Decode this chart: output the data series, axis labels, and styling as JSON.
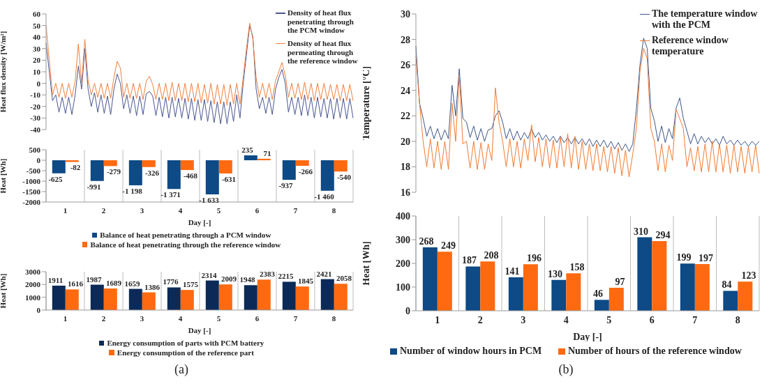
{
  "chart_data": [
    {
      "type": "line",
      "ylabel": "Heat flux density  [W/m²]",
      "categories": [
        null,
        null,
        null,
        null,
        null,
        null,
        null,
        null,
        null,
        null,
        null,
        null,
        null,
        null,
        null,
        null,
        null,
        null,
        null,
        null,
        null,
        null,
        null,
        null,
        null,
        null,
        null,
        null,
        null,
        null,
        null,
        null,
        null,
        null,
        null,
        null,
        null,
        null,
        null,
        null,
        null,
        null,
        null,
        null,
        null,
        null,
        null,
        null,
        null,
        null,
        null,
        null,
        null,
        null,
        null,
        null,
        null,
        null,
        null,
        null,
        null,
        null,
        null,
        null,
        null,
        null,
        null,
        null,
        null,
        null,
        null,
        null,
        null,
        null,
        null,
        null,
        null,
        null,
        null,
        null,
        null,
        null,
        null,
        null,
        null,
        null,
        null,
        null,
        null,
        null,
        null,
        null,
        null,
        null,
        null,
        null
      ],
      "ylim": [
        -40,
        60
      ],
      "yticks": [
        -40,
        -30,
        -20,
        -10,
        0,
        10,
        20,
        30,
        40,
        50,
        60
      ],
      "tick_labels": "y",
      "legend": "top right",
      "series": [
        {
          "name": "Density of heat flux penetrating through the PCM window",
          "color": "#4a5590",
          "values": [
            35,
            10,
            -15,
            -10,
            -25,
            -12,
            -26,
            -12,
            -27,
            -10,
            15,
            -5,
            30,
            -5,
            -20,
            -8,
            -25,
            -10,
            -26,
            -11,
            -27,
            -5,
            8,
            0,
            -22,
            -10,
            -26,
            -11,
            -28,
            -11,
            -27,
            -9,
            -7,
            -11,
            -28,
            -12,
            -29,
            -12,
            -30,
            -12,
            -29,
            -13,
            -30,
            -13,
            -31,
            -13,
            -32,
            -14,
            -32,
            -14,
            -33,
            -15,
            -34,
            -16,
            -35,
            -16,
            -35,
            -16,
            -33,
            -10,
            -30,
            0,
            25,
            50,
            40,
            -5,
            -22,
            -12,
            -26,
            -12,
            -27,
            -5,
            5,
            12,
            0,
            -25,
            -12,
            -27,
            -12,
            -28,
            -10,
            -28,
            -12,
            -30,
            -12,
            -29,
            -13,
            -30,
            -13,
            -31,
            -13,
            -30,
            -13,
            -31,
            -13,
            -30
          ]
        },
        {
          "name": "Density of heat flux permeating through the reference window",
          "color": "#f07f3c",
          "values": [
            50,
            20,
            -10,
            0,
            -12,
            0,
            -13,
            0,
            -12,
            2,
            34,
            0,
            38,
            3,
            -10,
            0,
            -12,
            0,
            -13,
            0,
            -13,
            5,
            19,
            13,
            -12,
            0,
            -13,
            0,
            -13,
            0,
            -14,
            2,
            6,
            -1,
            -14,
            0,
            -14,
            0,
            -15,
            1,
            -15,
            0,
            -15,
            0,
            -16,
            0,
            -16,
            0,
            -17,
            -1,
            -17,
            0,
            -18,
            -1,
            -18,
            -1,
            -19,
            -1,
            -18,
            0,
            -18,
            5,
            30,
            52,
            38,
            5,
            -12,
            0,
            -13,
            0,
            -14,
            2,
            10,
            18,
            7,
            -12,
            0,
            -13,
            0,
            -14,
            1,
            -14,
            0,
            -15,
            0,
            -14,
            0,
            -14,
            -1,
            -14,
            -1,
            -15,
            -1,
            -15,
            -1,
            -15
          ]
        }
      ]
    },
    {
      "type": "bar",
      "ylabel": "Heat  [Wh]",
      "xlabel": "Day [-]",
      "categories": [
        "1",
        "2",
        "3",
        "4",
        "5",
        "6",
        "7",
        "8"
      ],
      "ylim": [
        -2000,
        500
      ],
      "yticks": [
        -2000,
        -1500,
        -1000,
        -500,
        0,
        500
      ],
      "grid": "x",
      "legend": "bottom",
      "series": [
        {
          "name": "Balance of heat penetrating through a PCM window",
          "color": "#0d4a86",
          "values": [
            -625,
            -991,
            -1198,
            -1371,
            -1633,
            235,
            -937,
            -1460
          ],
          "value_labels": [
            "-625",
            "-991",
            "-1 198",
            "-1 371",
            "-1 633",
            "235",
            "-937",
            "-1 460"
          ]
        },
        {
          "name": "Balance of heat penetrating through the reference window",
          "color": "#ff6a10",
          "values": [
            -82,
            -279,
            -326,
            -468,
            -631,
            71,
            -266,
            -540
          ],
          "value_labels": [
            "-82",
            "-279",
            "-326",
            "-468",
            "-631",
            "71",
            "-266",
            "-540"
          ]
        }
      ]
    },
    {
      "type": "bar",
      "ylabel": "Heat [Wh]",
      "xlabel": "Day [-]",
      "categories": [
        "1",
        "2",
        "3",
        "4",
        "5",
        "6",
        "7",
        "8"
      ],
      "ylim": [
        0,
        3000
      ],
      "yticks": [
        0,
        1000,
        2000,
        3000
      ],
      "grid": "x",
      "legend": "bottom",
      "data_labels": true,
      "annotations": [
        "(a)"
      ],
      "series": [
        {
          "name": "Energy consumption of parts with PCM battery",
          "color": "#0c2a57",
          "values": [
            1911,
            1987,
            1659,
            1776,
            2314,
            1948,
            2215,
            2421
          ]
        },
        {
          "name": "Energy consumption of the reference part",
          "color": "#ff6a10",
          "values": [
            1616,
            1689,
            1386,
            1575,
            2009,
            2383,
            1845,
            2058
          ]
        }
      ]
    },
    {
      "type": "line",
      "ylabel": "Temperature [°C]",
      "categories": [
        null,
        null,
        null,
        null,
        null,
        null,
        null,
        null,
        null,
        null,
        null,
        null,
        null,
        null,
        null,
        null,
        null,
        null,
        null,
        null,
        null,
        null,
        null,
        null,
        null,
        null,
        null,
        null,
        null,
        null,
        null,
        null,
        null,
        null,
        null,
        null,
        null,
        null,
        null,
        null,
        null,
        null,
        null,
        null,
        null,
        null,
        null,
        null,
        null,
        null,
        null,
        null,
        null,
        null,
        null,
        null,
        null,
        null,
        null,
        null,
        null,
        null,
        null,
        null,
        null,
        null,
        null,
        null,
        null,
        null,
        null,
        null,
        null,
        null,
        null,
        null,
        null,
        null,
        null,
        null,
        null,
        null,
        null,
        null,
        null,
        null,
        null,
        null,
        null,
        null,
        null,
        null,
        null,
        null,
        null,
        null
      ],
      "ylim": [
        16,
        30
      ],
      "yticks": [
        16,
        18,
        20,
        22,
        24,
        26,
        28,
        30
      ],
      "tick_labels": "y",
      "legend": "top right",
      "series": [
        {
          "name": "The temperature window with the PCM",
          "color": "#3d5688",
          "values": [
            27.5,
            23,
            21.8,
            20.4,
            21.2,
            20.2,
            21,
            20.1,
            20.9,
            20.2,
            24.4,
            22,
            25.7,
            21.8,
            21.5,
            20.3,
            21.2,
            20.1,
            21,
            20,
            20.9,
            21,
            22,
            22.4,
            21.5,
            20.2,
            21,
            20.1,
            20.8,
            20.1,
            20.7,
            20.2,
            21,
            20.3,
            20.7,
            20.1,
            20.5,
            20,
            20.4,
            19.9,
            20.4,
            19.9,
            20.3,
            19.8,
            20.3,
            19.8,
            20.2,
            19.7,
            20.2,
            19.6,
            20.1,
            19.6,
            20.1,
            19.5,
            20,
            19.4,
            19.9,
            19.3,
            19.8,
            19.2,
            19.8,
            22.5,
            26,
            28.1,
            27.3,
            22.6,
            21.6,
            20,
            21.2,
            19.9,
            21,
            20.2,
            22.6,
            23.4,
            21.8,
            20.8,
            19.8,
            20.6,
            19.8,
            20.4,
            19.9,
            20.3,
            19.8,
            20.2,
            19.7,
            20.4,
            19.8,
            20.1,
            19.7,
            20.1,
            19.7,
            20,
            19.6,
            20,
            19.7,
            20
          ]
        },
        {
          "name": "Reference window temperature",
          "color": "#f27a30",
          "values": [
            26.7,
            23,
            20,
            18,
            20.2,
            17.9,
            20,
            17.8,
            20,
            17.8,
            23,
            20,
            25.2,
            19.8,
            20,
            17.9,
            20,
            17.8,
            19.9,
            17.8,
            19.8,
            18.5,
            24.2,
            21.5,
            20,
            18,
            20.2,
            18,
            20,
            17.9,
            20.2,
            18.5,
            21.3,
            18.4,
            20.3,
            18,
            20.2,
            17.9,
            20.1,
            17.9,
            20.3,
            18,
            20.6,
            17.9,
            20.4,
            17.8,
            20,
            17.8,
            19.8,
            17.7,
            19.8,
            17.7,
            19.6,
            17.6,
            19.6,
            17.5,
            19.5,
            17.3,
            19.3,
            17.2,
            19,
            21,
            25.5,
            27.3,
            26.5,
            21,
            20,
            17.7,
            19.8,
            17.6,
            19.7,
            18.5,
            22.5,
            21.8,
            21,
            18,
            19.5,
            17.7,
            19.6,
            17.6,
            19.8,
            17.6,
            20,
            17.6,
            19.8,
            17.6,
            19.7,
            17.5,
            19.7,
            17.6,
            19.6,
            17.5,
            19.6,
            17.6,
            19.7,
            17.5
          ]
        }
      ]
    },
    {
      "type": "bar",
      "ylabel": "Heat [Wh]",
      "xlabel": "Day [-]",
      "categories": [
        "1",
        "2",
        "3",
        "4",
        "5",
        "6",
        "7",
        "8"
      ],
      "ylim": [
        0,
        400
      ],
      "yticks": [
        0,
        100,
        200,
        300,
        400
      ],
      "grid": "x",
      "legend": "bottom",
      "data_labels": true,
      "annotations": [
        "(b)"
      ],
      "series": [
        {
          "name": "Number of window hours in PCM",
          "color": "#0d4a86",
          "values": [
            268,
            187,
            141,
            130,
            46,
            310,
            199,
            84
          ]
        },
        {
          "name": "Number of hours of the reference window",
          "color": "#ff6a10",
          "values": [
            249,
            208,
            196,
            158,
            97,
            294,
            197,
            123
          ]
        }
      ]
    }
  ]
}
